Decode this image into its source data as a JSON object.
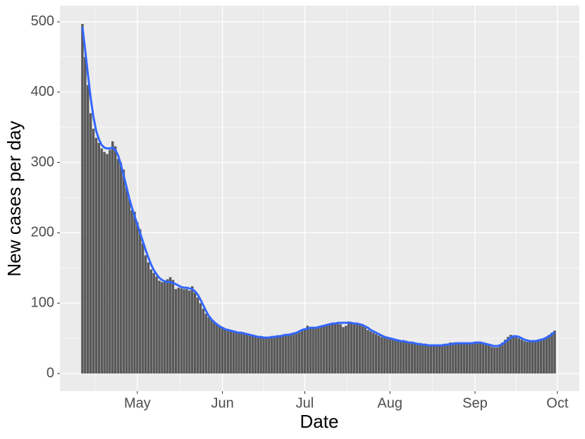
{
  "chart_data": {
    "type": "bar",
    "xlabel": "Date",
    "ylabel": "New cases per day",
    "x": [
      1,
      2,
      3,
      4,
      5,
      6,
      7,
      8,
      9,
      10,
      11,
      12,
      13,
      14,
      15,
      16,
      17,
      18,
      19,
      20,
      21,
      22,
      23,
      24,
      25,
      26,
      27,
      28,
      29,
      30,
      31,
      32,
      33,
      34,
      35,
      36,
      37,
      38,
      39,
      40,
      41,
      42,
      43,
      44,
      45,
      46,
      47,
      48,
      49,
      50,
      51,
      52,
      53,
      54,
      55,
      56,
      57,
      58,
      59,
      60,
      61,
      62,
      63,
      64,
      65,
      66,
      67,
      68,
      69,
      70,
      71,
      72,
      73,
      74,
      75,
      76,
      77,
      78,
      79,
      80,
      81,
      82,
      83,
      84,
      85,
      86,
      87,
      88,
      89,
      90,
      91,
      92,
      93,
      94,
      95,
      96,
      97,
      98,
      99,
      100,
      101,
      102,
      103,
      104,
      105,
      106,
      107,
      108,
      109,
      110,
      111,
      112,
      113,
      114,
      115,
      116,
      117,
      118,
      119,
      120,
      121,
      122,
      123,
      124,
      125,
      126,
      127,
      128,
      129,
      130,
      131,
      132,
      133,
      134,
      135,
      136,
      137,
      138,
      139,
      140,
      141,
      142,
      143,
      144,
      145,
      146,
      147,
      148,
      149,
      150,
      151,
      152,
      153,
      154,
      155,
      156,
      157,
      158,
      159,
      160,
      161,
      162,
      163,
      164,
      165,
      166,
      167,
      168,
      169,
      170,
      171,
      172,
      173
    ],
    "series": [
      {
        "type": "bar",
        "color": "#595959",
        "values": [
          497,
          450,
          410,
          370,
          348,
          335,
          328,
          320,
          315,
          312,
          318,
          330,
          323,
          305,
          300,
          290,
          265,
          250,
          232,
          230,
          215,
          205,
          185,
          168,
          158,
          148,
          143,
          138,
          132,
          130,
          131,
          134,
          137,
          133,
          120,
          122,
          121,
          120,
          120,
          118,
          124,
          115,
          108,
          100,
          92,
          85,
          80,
          76,
          72,
          70,
          68,
          66,
          63,
          62,
          61,
          60,
          60,
          59,
          58,
          57,
          56,
          55,
          54,
          53,
          52,
          51,
          51,
          50,
          51,
          52,
          52,
          53,
          54,
          55,
          55,
          56,
          56,
          57,
          58,
          60,
          62,
          64,
          68,
          64,
          65,
          64,
          65,
          66,
          68,
          70,
          70,
          71,
          72,
          71,
          70,
          66,
          68,
          74,
          72,
          71,
          70,
          70,
          69,
          66,
          62,
          60,
          58,
          56,
          54,
          52,
          51,
          50,
          49,
          48,
          48,
          47,
          46,
          45,
          44,
          44,
          43,
          42,
          42,
          41,
          41,
          40,
          40,
          40,
          39,
          39,
          40,
          40,
          41,
          42,
          44,
          44,
          43,
          43,
          42,
          42,
          42,
          43,
          43,
          44,
          44,
          44,
          43,
          42,
          40,
          38,
          37,
          37,
          40,
          44,
          48,
          52,
          55,
          54,
          52,
          50,
          48,
          46,
          45,
          45,
          45,
          46,
          47,
          48,
          50,
          52,
          55,
          58,
          61
        ]
      },
      {
        "type": "line",
        "color": "#3366FF",
        "values": [
          493,
          460,
          425,
          392,
          365,
          345,
          333,
          325,
          321,
          320,
          320,
          321,
          318,
          310,
          297,
          282,
          266,
          250,
          236,
          224,
          212,
          200,
          188,
          176,
          165,
          155,
          147,
          141,
          136,
          133,
          131,
          130,
          130,
          129,
          127,
          125,
          123,
          122,
          122,
          121,
          120,
          117,
          112,
          105,
          97,
          89,
          82,
          77,
          73,
          70,
          67,
          65,
          63,
          62,
          61,
          60,
          59,
          58,
          58,
          57,
          56,
          55,
          54,
          53,
          52,
          52,
          51,
          51,
          51,
          52,
          52,
          53,
          53,
          54,
          55,
          55,
          56,
          57,
          58,
          60,
          62,
          63,
          64,
          65,
          65,
          65,
          66,
          67,
          68,
          69,
          70,
          71,
          71,
          72,
          72,
          72,
          72,
          72,
          72,
          71,
          71,
          70,
          69,
          67,
          65,
          62,
          60,
          58,
          56,
          54,
          52,
          51,
          50,
          49,
          48,
          47,
          46,
          46,
          45,
          44,
          44,
          43,
          42,
          42,
          41,
          41,
          40,
          40,
          40,
          40,
          40,
          40,
          41,
          41,
          42,
          42,
          43,
          43,
          43,
          43,
          43,
          43,
          43,
          44,
          44,
          44,
          43,
          42,
          41,
          40,
          39,
          39,
          40,
          42,
          45,
          48,
          51,
          53,
          53,
          52,
          50,
          48,
          47,
          46,
          46,
          46,
          47,
          48,
          49,
          51,
          53,
          56,
          59
        ]
      }
    ],
    "xlim": [
      -7.2,
      182
    ],
    "xticks": [
      {
        "value": 21,
        "label": "May"
      },
      {
        "value": 52,
        "label": "Jun"
      },
      {
        "value": 82,
        "label": "Jul"
      },
      {
        "value": 113,
        "label": "Aug"
      },
      {
        "value": 144,
        "label": "Sep"
      },
      {
        "value": 174,
        "label": "Oct"
      }
    ],
    "ylim": [
      -25,
      523
    ],
    "yticks": [
      0,
      100,
      200,
      300,
      400,
      500
    ],
    "grid": true
  }
}
